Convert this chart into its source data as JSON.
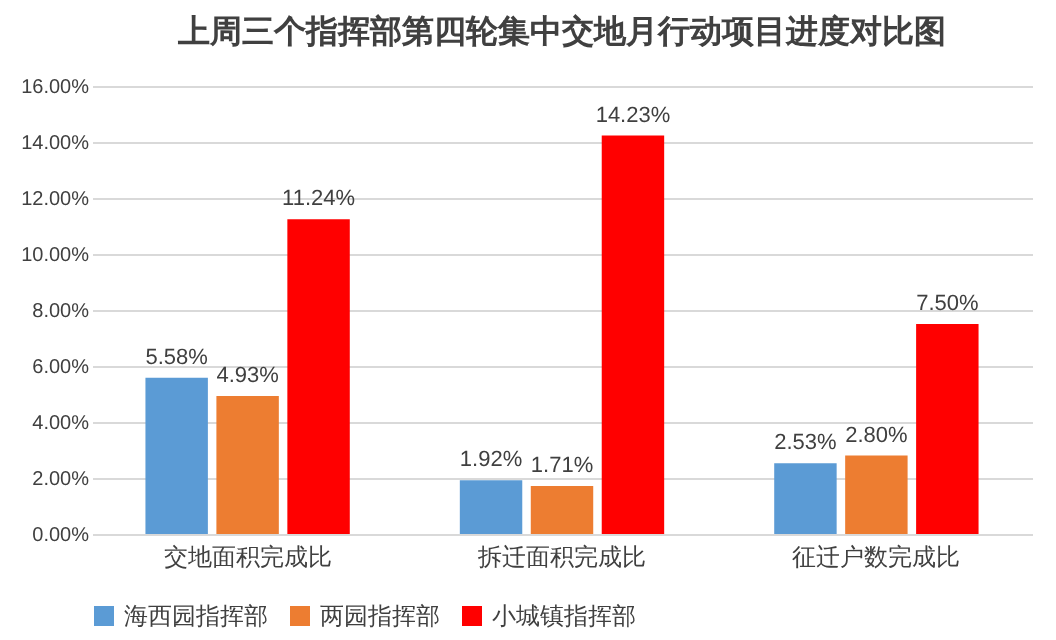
{
  "chart_data": {
    "type": "bar",
    "title": "上周三个指挥部第四轮集中交地月行动项目进度对比图",
    "categories": [
      "交地面积完成比",
      "拆迁面积完成比",
      "征迁户数完成比"
    ],
    "series": [
      {
        "name": "海西园指挥部",
        "color": "#5b9bd5",
        "values": [
          5.58,
          1.92,
          2.53
        ],
        "value_labels": [
          "5.58%",
          "1.92%",
          "2.53%"
        ]
      },
      {
        "name": "两园指挥部",
        "color": "#ed7d31",
        "values": [
          4.93,
          1.71,
          2.8
        ],
        "value_labels": [
          "4.93%",
          "1.71%",
          "2.80%"
        ]
      },
      {
        "name": "小城镇指挥部",
        "color": "#ff0000",
        "values": [
          11.24,
          14.23,
          7.5
        ],
        "value_labels": [
          "11.24%",
          "14.23%",
          "7.50%"
        ]
      }
    ],
    "ylim": [
      0,
      16
    ],
    "yticks": [
      {
        "value": 0,
        "label": "0.00%"
      },
      {
        "value": 2,
        "label": "2.00%"
      },
      {
        "value": 4,
        "label": "4.00%"
      },
      {
        "value": 6,
        "label": "6.00%"
      },
      {
        "value": 8,
        "label": "8.00%"
      },
      {
        "value": 10,
        "label": "10.00%"
      },
      {
        "value": 12,
        "label": "12.00%"
      },
      {
        "value": 14,
        "label": "14.00%"
      },
      {
        "value": 16,
        "label": "16.00%"
      }
    ],
    "grid": "y",
    "legend": "bottom"
  }
}
